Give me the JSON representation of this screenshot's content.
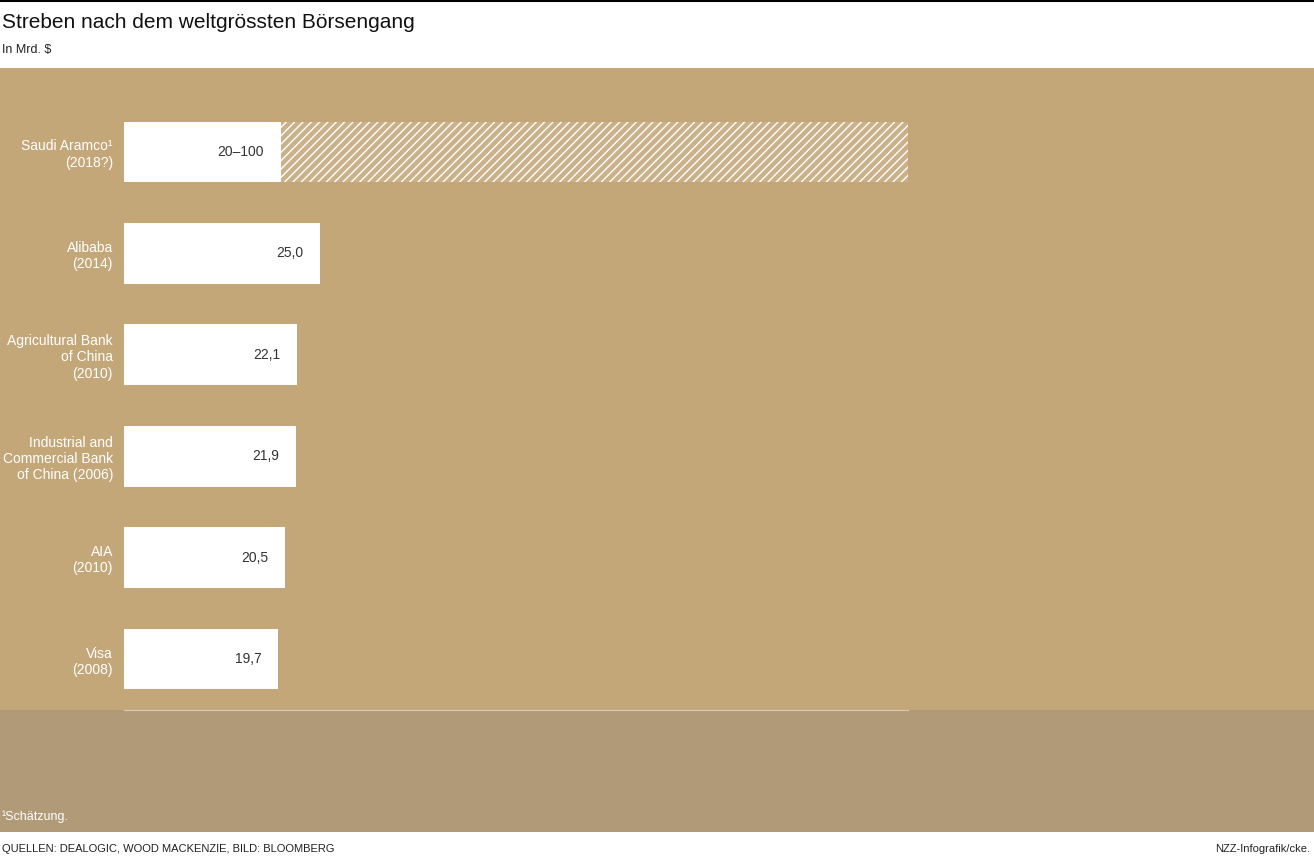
{
  "chart_data": {
    "type": "bar",
    "orientation": "horizontal",
    "title": "Streben nach dem weltgrössten Börsengang",
    "subtitle": "In Mrd. $",
    "categories": [
      "Saudi Aramco¹\n(2018?)",
      "Alibaba\n(2014)",
      "Agricultural Bank\nof China\n(2010)",
      "Industrial and\nCommercial Bank\nof China (2006)",
      "AIA\n(2010)",
      "Visa\n(2008)"
    ],
    "values": [
      100,
      25.0,
      22.1,
      21.9,
      20.5,
      19.7
    ],
    "range_start": [
      20,
      null,
      null,
      null,
      null,
      null
    ],
    "value_labels": [
      "20–100",
      "25,0",
      "22,1",
      "21,9",
      "20,5",
      "19,7"
    ],
    "data_labels": true,
    "color": "#ffffff",
    "xlim": [
      0,
      100
    ],
    "xticks": [],
    "tick_labels": "y",
    "grid": false,
    "footnote": "¹Schätzung.",
    "source": "QUELLEN: DEALOGIC, WOOD MACKENZIE, BILD: BLOOMBERG",
    "credit": "NZZ-Infografik/cke."
  }
}
